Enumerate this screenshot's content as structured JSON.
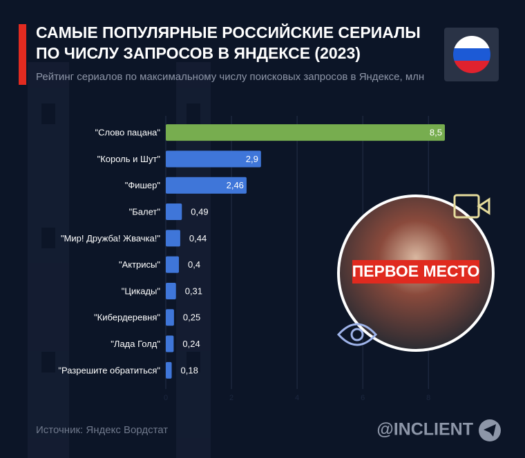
{
  "chart_data": {
    "type": "barh",
    "title": [
      "САМЫЕ ПОПУЛЯРНЫЕ РОССИЙСКИЕ СЕРИАЛЫ",
      "ПО ЧИСЛУ ЗАПРОСОВ В ЯНДЕКСЕ (2023)"
    ],
    "subtitle": "Рейтинг сериалов по максимальному числу поисковых запросов в Яндексе, млн",
    "categories": [
      "\"Слово пацана\"",
      "\"Король и Шут\"",
      "\"Фишер\"",
      "\"Балет\"",
      "\"Мир! Дружба! Жвачка!\"",
      "\"Актрисы\"",
      "\"Цикады\"",
      "\"Кибердеревня\"",
      "\"Лада Голд\"",
      "\"Разрешите обратиться\""
    ],
    "values": [
      8.5,
      2.9,
      2.46,
      0.49,
      0.44,
      0.4,
      0.31,
      0.25,
      0.24,
      0.18
    ],
    "value_labels": [
      "8,5",
      "2,9",
      "2,46",
      "0,49",
      "0,44",
      "0,4",
      "0,31",
      "0,25",
      "0,24",
      "0,18"
    ],
    "colors": [
      "#77ad4f",
      "#3f76d9",
      "#3f76d9",
      "#3f76d9",
      "#3f76d9",
      "#3f76d9",
      "#3f76d9",
      "#3f76d9",
      "#3f76d9",
      "#3f76d9"
    ],
    "xlim": [
      0,
      8.5
    ],
    "xticks": [
      0,
      2,
      4,
      6,
      8
    ],
    "grid": true,
    "badge": "ПЕРВОЕ МЕСТО",
    "source": "Источник: Яндекс Вордстат",
    "brand": "@INCLIENT"
  }
}
